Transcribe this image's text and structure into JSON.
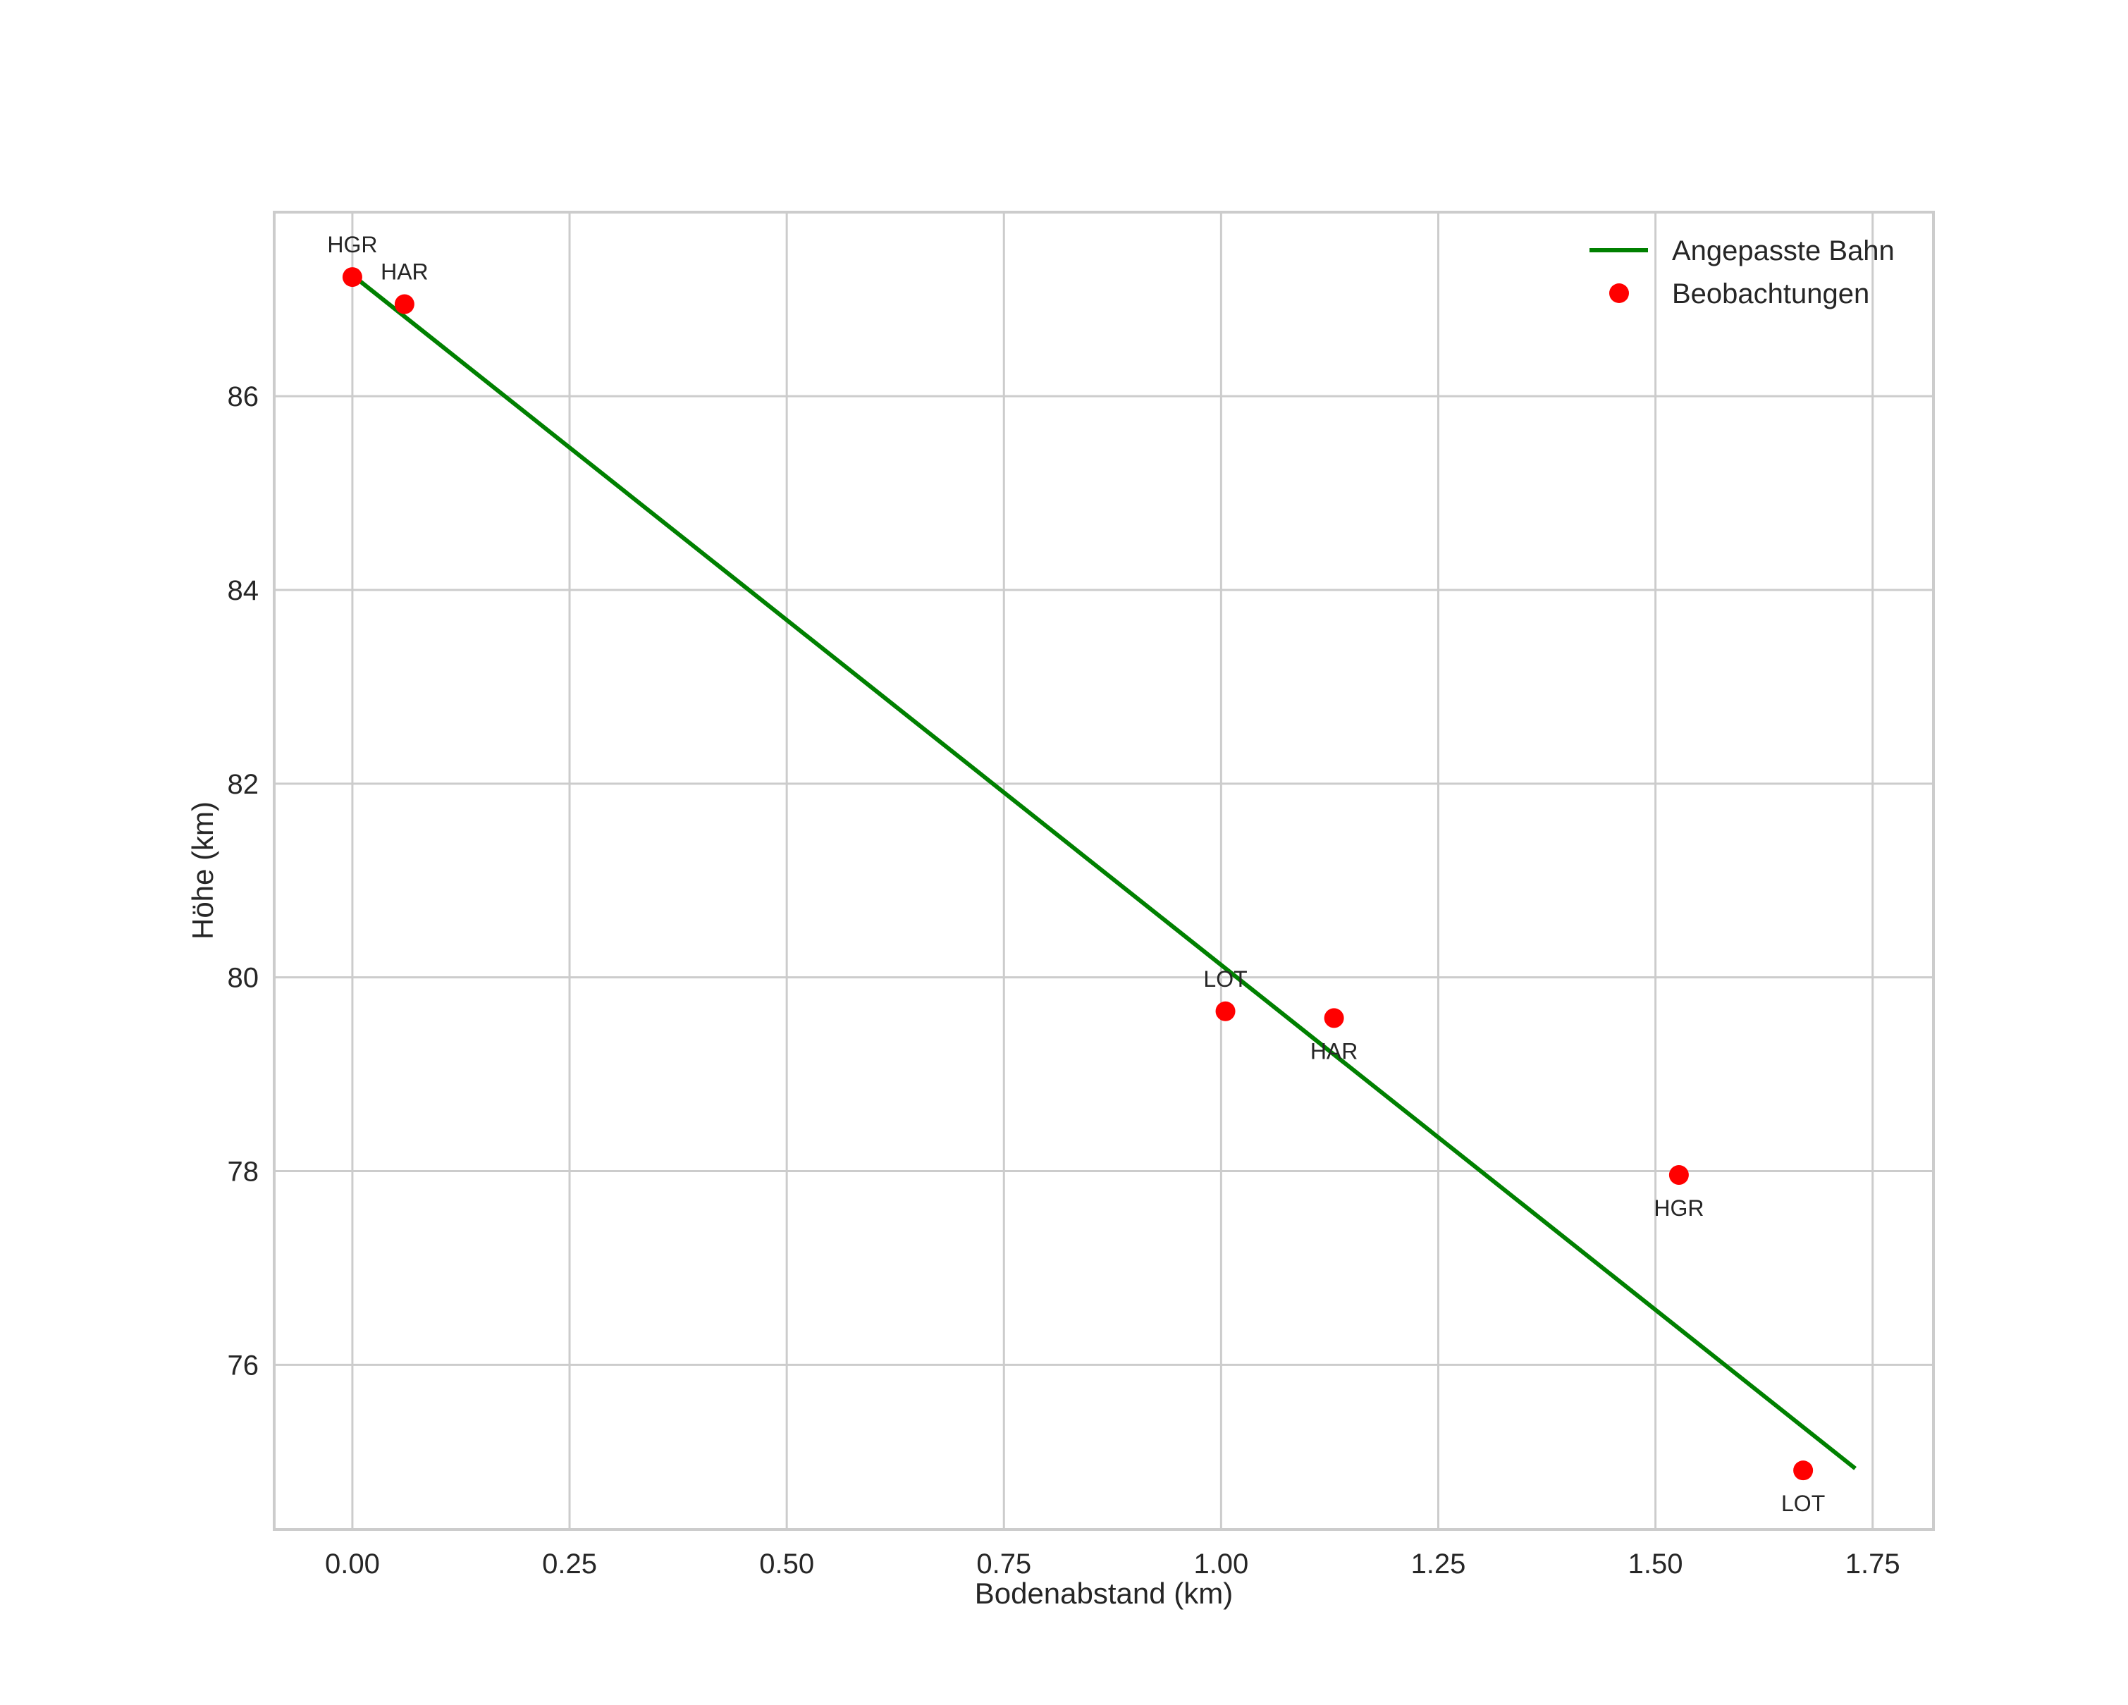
{
  "chart_data": {
    "type": "scatter",
    "title": "",
    "xlabel": "Bodenabstand (km)",
    "ylabel": "Höhe (km)",
    "xlim": [
      -0.09,
      1.82
    ],
    "ylim": [
      74.3,
      87.9
    ],
    "xticks": [
      0.0,
      0.25,
      0.5,
      0.75,
      1.0,
      1.25,
      1.5,
      1.75
    ],
    "xtick_labels": [
      "0.00",
      "0.25",
      "0.50",
      "0.75",
      "1.00",
      "1.25",
      "1.50",
      "1.75"
    ],
    "yticks": [
      76,
      78,
      80,
      82,
      84,
      86
    ],
    "ytick_labels": [
      "76",
      "78",
      "80",
      "82",
      "84",
      "86"
    ],
    "grid": true,
    "legend_position": "top-right",
    "series": [
      {
        "name": "Angepasste Bahn",
        "kind": "line",
        "color": "#008000",
        "x": [
          0.0,
          1.73
        ],
        "y": [
          87.25,
          74.93
        ]
      },
      {
        "name": "Beobachtungen",
        "kind": "scatter",
        "color": "#ff0000",
        "points": [
          {
            "x": 0.0,
            "y": 87.23,
            "label": "HGR",
            "label_pos": "above"
          },
          {
            "x": 0.06,
            "y": 86.95,
            "label": "HAR",
            "label_pos": "above"
          },
          {
            "x": 1.005,
            "y": 79.65,
            "label": "LOT",
            "label_pos": "above"
          },
          {
            "x": 1.13,
            "y": 79.58,
            "label": "HAR",
            "label_pos": "below"
          },
          {
            "x": 1.527,
            "y": 77.96,
            "label": "HGR",
            "label_pos": "below"
          },
          {
            "x": 1.67,
            "y": 74.91,
            "label": "LOT",
            "label_pos": "below"
          }
        ]
      }
    ]
  }
}
